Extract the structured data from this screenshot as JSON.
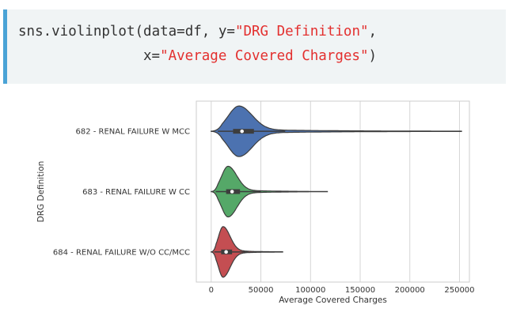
{
  "code": {
    "line1_prefix": "sns.violinplot(data=df, y=",
    "line1_string": "\"DRG Definition\"",
    "line1_suffix": ",",
    "line2_prefix": "x=",
    "line2_string": "\"Average Covered Charges\"",
    "line2_suffix": ")"
  },
  "chart_data": {
    "type": "violin",
    "xlabel": "Average Covered Charges",
    "ylabel": "DRG Definition",
    "xlim": [
      -15000,
      260000
    ],
    "xticks": [
      0,
      50000,
      100000,
      150000,
      200000,
      250000
    ],
    "xtick_labels": [
      "0",
      "50000",
      "100000",
      "150000",
      "200000",
      "250000"
    ],
    "grid": true,
    "categories": [
      "682 - RENAL FAILURE W MCC",
      "683 - RENAL FAILURE W CC",
      "684 - RENAL FAILURE W/O CC/MCC"
    ],
    "series": [
      {
        "category": "682 - RENAL FAILURE W MCC",
        "color": "#4c72b0",
        "min": 0,
        "q1": 22000,
        "median": 31000,
        "q3": 43000,
        "max": 252000,
        "mode": 28000
      },
      {
        "category": "683 - RENAL FAILURE W CC",
        "color": "#55a868",
        "min": 0,
        "q1": 15000,
        "median": 21000,
        "q3": 29000,
        "max": 117000,
        "mode": 17000
      },
      {
        "category": "684 - RENAL FAILURE W/O CC/MCC",
        "color": "#c44e52",
        "min": 0,
        "q1": 10000,
        "median": 15000,
        "q3": 21000,
        "max": 72000,
        "mode": 12000
      }
    ]
  }
}
